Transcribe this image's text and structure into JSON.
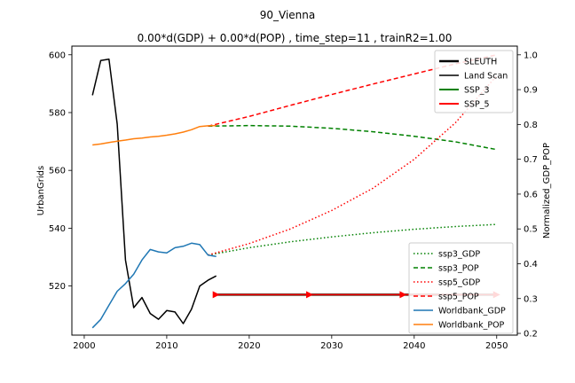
{
  "suptitle": "90_Vienna",
  "title": "0.00*d(GDP) + 0.00*d(POP) , time_step=11 , trainR2=1.00",
  "chart_data": {
    "type": "line",
    "xlabel": "",
    "ylabel_left": "UrbanGrids",
    "ylabel_right": "Normalized_GDP_POP",
    "xlim": [
      1998.5,
      2052.5
    ],
    "ylim_left": [
      503,
      603
    ],
    "ylim_right": [
      0.195,
      1.025
    ],
    "x_ticks": [
      2000,
      2010,
      2020,
      2030,
      2040,
      2050
    ],
    "x_tick_labels": [
      "2000",
      "2010",
      "2020",
      "2030",
      "2040",
      "2050"
    ],
    "y_left_ticks": [
      520,
      540,
      560,
      580,
      600
    ],
    "y_left_tick_labels": [
      "520",
      "540",
      "560",
      "580",
      "600"
    ],
    "y_right_ticks": [
      0.2,
      0.3,
      0.4,
      0.5,
      0.6,
      0.7,
      0.8,
      0.9,
      1.0
    ],
    "y_right_tick_labels": [
      "0.2",
      "0.3",
      "0.4",
      "0.5",
      "0.6",
      "0.7",
      "0.8",
      "0.9",
      "1.0"
    ],
    "legend_left_axis": {
      "placement": "upper right",
      "entries": [
        {
          "label": "SLEUTH",
          "color": "#000000",
          "style": "solid",
          "width": 2.5
        },
        {
          "label": "Land Scan",
          "color": "#000000",
          "style": "solid",
          "width": 1.5
        },
        {
          "label": "SSP_3",
          "color": "#008000",
          "style": "solid",
          "width": 2
        },
        {
          "label": "SSP_5",
          "color": "#ff0000",
          "style": "solid",
          "width": 2
        }
      ]
    },
    "legend_right_axis": {
      "placement": "lower right",
      "entries": [
        {
          "label": "ssp3_GDP",
          "color": "#008000",
          "style": "dotted"
        },
        {
          "label": "ssp3_POP",
          "color": "#008000",
          "style": "dashed"
        },
        {
          "label": "ssp5_GDP",
          "color": "#ff0000",
          "style": "dotted"
        },
        {
          "label": "ssp5_POP",
          "color": "#ff0000",
          "style": "dashed"
        },
        {
          "label": "Worldbank_GDP",
          "color": "#1f77b4",
          "style": "solid"
        },
        {
          "label": "Worldbank_POP",
          "color": "#ff7f0e",
          "style": "solid"
        }
      ]
    },
    "series": [
      {
        "name": "Land Scan",
        "axis": "left",
        "color": "#000000",
        "style": "solid",
        "width": 1.5,
        "x": [
          2001,
          2002,
          2003,
          2004,
          2005,
          2006,
          2007,
          2008,
          2009,
          2010,
          2011,
          2012,
          2013,
          2014,
          2015,
          2016
        ],
        "y": [
          586,
          598,
          598.5,
          576,
          529,
          512.5,
          516,
          510.5,
          508.5,
          511.5,
          511,
          507,
          512,
          520,
          522,
          523.5
        ]
      },
      {
        "name": "SLEUTH",
        "axis": "left",
        "color": "#000000",
        "style": "solid",
        "width": 2.5,
        "x": [
          2016,
          2050
        ],
        "y": [
          517,
          517
        ]
      },
      {
        "name": "SSP_3",
        "axis": "left",
        "color": "#008000",
        "style": "solid",
        "width": 1.5,
        "x": [
          2016,
          2050
        ],
        "y": [
          517,
          517
        ]
      },
      {
        "name": "SSP_5",
        "axis": "left",
        "color": "#ff0000",
        "style": "solid",
        "width": 1.5,
        "markers": "arrow",
        "x": [
          2016,
          2050
        ],
        "y": [
          517,
          517
        ]
      },
      {
        "name": "ssp3_GDP",
        "axis": "right",
        "color": "#008000",
        "style": "dotted",
        "x": [
          2015,
          2020,
          2025,
          2030,
          2035,
          2040,
          2045,
          2050
        ],
        "y": [
          0.425,
          0.446,
          0.463,
          0.477,
          0.489,
          0.499,
          0.507,
          0.513
        ]
      },
      {
        "name": "ssp3_POP",
        "axis": "right",
        "color": "#008000",
        "style": "dashed",
        "x": [
          2015,
          2020,
          2025,
          2030,
          2035,
          2040,
          2045,
          2050
        ],
        "y": [
          0.795,
          0.797,
          0.795,
          0.789,
          0.779,
          0.766,
          0.75,
          0.728
        ]
      },
      {
        "name": "ssp5_GDP",
        "axis": "right",
        "color": "#ff0000",
        "style": "dotted",
        "x": [
          2015,
          2020,
          2025,
          2030,
          2035,
          2040,
          2045,
          2050
        ],
        "y": [
          0.425,
          0.458,
          0.5,
          0.553,
          0.617,
          0.7,
          0.805,
          0.94
        ]
      },
      {
        "name": "ssp5_POP",
        "axis": "right",
        "color": "#ff0000",
        "style": "dashed",
        "x": [
          2015,
          2020,
          2025,
          2030,
          2035,
          2040,
          2045,
          2050
        ],
        "y": [
          0.795,
          0.823,
          0.855,
          0.886,
          0.916,
          0.945,
          0.974,
          1.0
        ]
      },
      {
        "name": "Worldbank_GDP",
        "axis": "right",
        "color": "#1f77b4",
        "style": "solid",
        "x": [
          2001,
          2002,
          2003,
          2004,
          2005,
          2006,
          2007,
          2008,
          2009,
          2010,
          2011,
          2012,
          2013,
          2014,
          2015,
          2016
        ],
        "y": [
          0.216,
          0.24,
          0.281,
          0.321,
          0.343,
          0.37,
          0.411,
          0.441,
          0.434,
          0.431,
          0.446,
          0.45,
          0.459,
          0.455,
          0.425,
          0.421
        ]
      },
      {
        "name": "Worldbank_POP",
        "axis": "right",
        "color": "#ff7f0e",
        "style": "solid",
        "x": [
          2001,
          2002,
          2003,
          2004,
          2005,
          2006,
          2007,
          2008,
          2009,
          2010,
          2011,
          2012,
          2013,
          2014,
          2015,
          2016
        ],
        "y": [
          0.741,
          0.744,
          0.748,
          0.752,
          0.755,
          0.759,
          0.761,
          0.764,
          0.766,
          0.769,
          0.773,
          0.778,
          0.785,
          0.794,
          0.796,
          0.797
        ]
      }
    ]
  }
}
